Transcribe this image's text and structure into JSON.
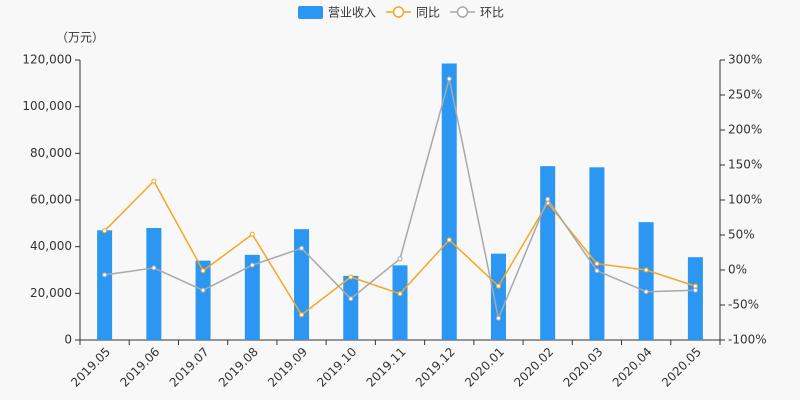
{
  "chart_data": {
    "type": "bar-line",
    "unit_label": "（万元）",
    "categories": [
      "2019.05",
      "2019.06",
      "2019.07",
      "2019.08",
      "2019.09",
      "2019.10",
      "2019.11",
      "2019.12",
      "2020.01",
      "2020.02",
      "2020.03",
      "2020.04",
      "2020.05"
    ],
    "series": [
      {
        "name": "营业收入",
        "type": "bar",
        "color": "#2b97f3",
        "axis": "y",
        "values": [
          47000,
          48000,
          34000,
          36500,
          47500,
          27500,
          32000,
          118500,
          37000,
          74500,
          74000,
          50500,
          35500
        ]
      },
      {
        "name": "同比",
        "type": "line",
        "color": "#f5a623",
        "axis": "y2",
        "values": [
          56,
          127,
          -1,
          51,
          -64,
          -10,
          -34,
          43,
          -23,
          96,
          9,
          0,
          -23
        ]
      },
      {
        "name": "环比",
        "type": "line",
        "color": "#a8a8a8",
        "axis": "y2",
        "values": [
          -7,
          3,
          -29,
          7,
          31,
          -41,
          16,
          273,
          -69,
          101,
          -1,
          -31,
          -29
        ]
      }
    ],
    "ylim": [
      0,
      120000
    ],
    "yticks": [
      0,
      {
        "value": 20000,
        "label": "20,000"
      },
      {
        "value": 40000,
        "label": "40,000"
      },
      {
        "value": 60000,
        "label": "60,000"
      },
      {
        "value": 80000,
        "label": "80,000"
      },
      {
        "value": 100000,
        "label": "100,000"
      },
      {
        "value": 120000,
        "label": "120,000"
      }
    ],
    "y2lim": [
      -100,
      300
    ],
    "y2ticks": [
      {
        "value": -100,
        "label": "-100%"
      },
      {
        "value": -50,
        "label": "-50%"
      },
      {
        "value": 0,
        "label": "0%"
      },
      {
        "value": 50,
        "label": "50%"
      },
      {
        "value": 100,
        "label": "100%"
      },
      {
        "value": 150,
        "label": "150%"
      },
      {
        "value": 200,
        "label": "200%"
      },
      {
        "value": 250,
        "label": "250%"
      },
      {
        "value": 300,
        "label": "300%"
      }
    ]
  }
}
